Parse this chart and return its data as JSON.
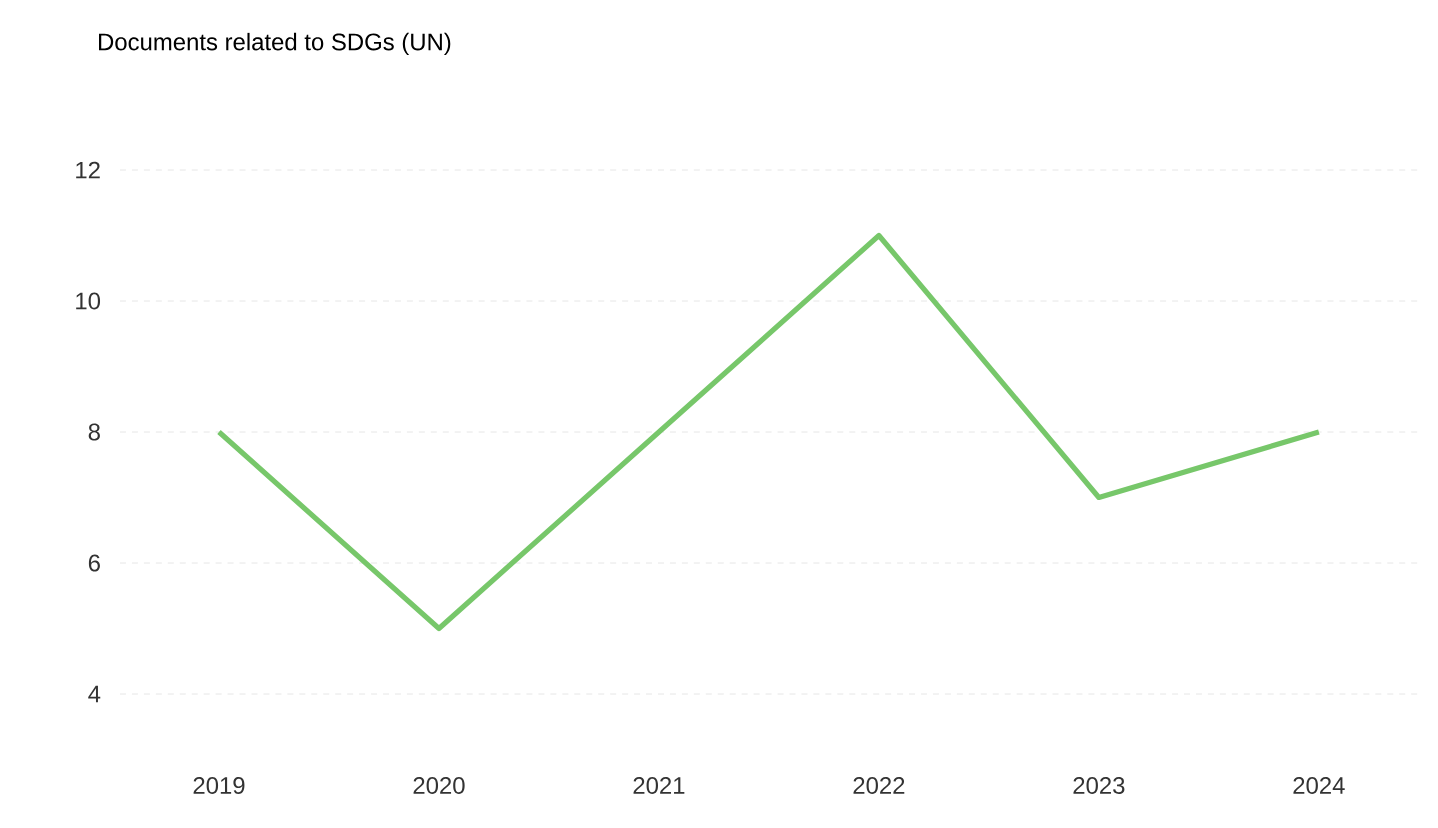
{
  "chart_data": {
    "type": "line",
    "title": "Documents related to SDGs (UN)",
    "categories": [
      "2019",
      "2020",
      "2021",
      "2022",
      "2023",
      "2024"
    ],
    "series": [
      {
        "color": "#77c76a",
        "values": [
          8,
          5,
          8,
          11,
          7,
          8
        ]
      }
    ],
    "ylim": [
      4,
      12
    ],
    "yticks": [
      4,
      6,
      8,
      10,
      12
    ],
    "grid": "y",
    "marker": "none",
    "line_style": "solid"
  }
}
